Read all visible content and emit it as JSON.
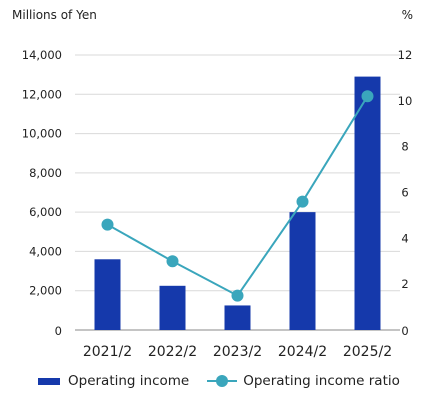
{
  "chart_data": {
    "type": "bar",
    "title": "",
    "categories": [
      "2021/2",
      "2022/2",
      "2023/2",
      "2024/2",
      "2025/2"
    ],
    "left_axis": {
      "label": "Millions of Yen",
      "ylim": [
        0,
        14000
      ],
      "ticks": [
        0,
        2000,
        4000,
        6000,
        8000,
        10000,
        12000,
        14000
      ],
      "tick_labels": [
        "0",
        "2,000",
        "4,000",
        "6,000",
        "8,000",
        "10,000",
        "12,000",
        "14,000"
      ]
    },
    "right_axis": {
      "label": "%",
      "ylim": [
        0,
        12
      ],
      "ticks": [
        0,
        2,
        4,
        6,
        8,
        10,
        12
      ],
      "tick_labels": [
        "0",
        "2",
        "4",
        "6",
        "8",
        "10",
        "12"
      ]
    },
    "series": [
      {
        "name": "Operating income",
        "type": "bar",
        "axis": "left",
        "color": "#1539ab",
        "values": [
          3600,
          2250,
          1250,
          6000,
          12900
        ]
      },
      {
        "name": "Operating income ratio",
        "type": "line",
        "axis": "right",
        "color": "#3aa6bc",
        "values": [
          4.6,
          3.0,
          1.5,
          5.6,
          10.2
        ]
      }
    ],
    "grid": true,
    "legend_position": "bottom"
  }
}
